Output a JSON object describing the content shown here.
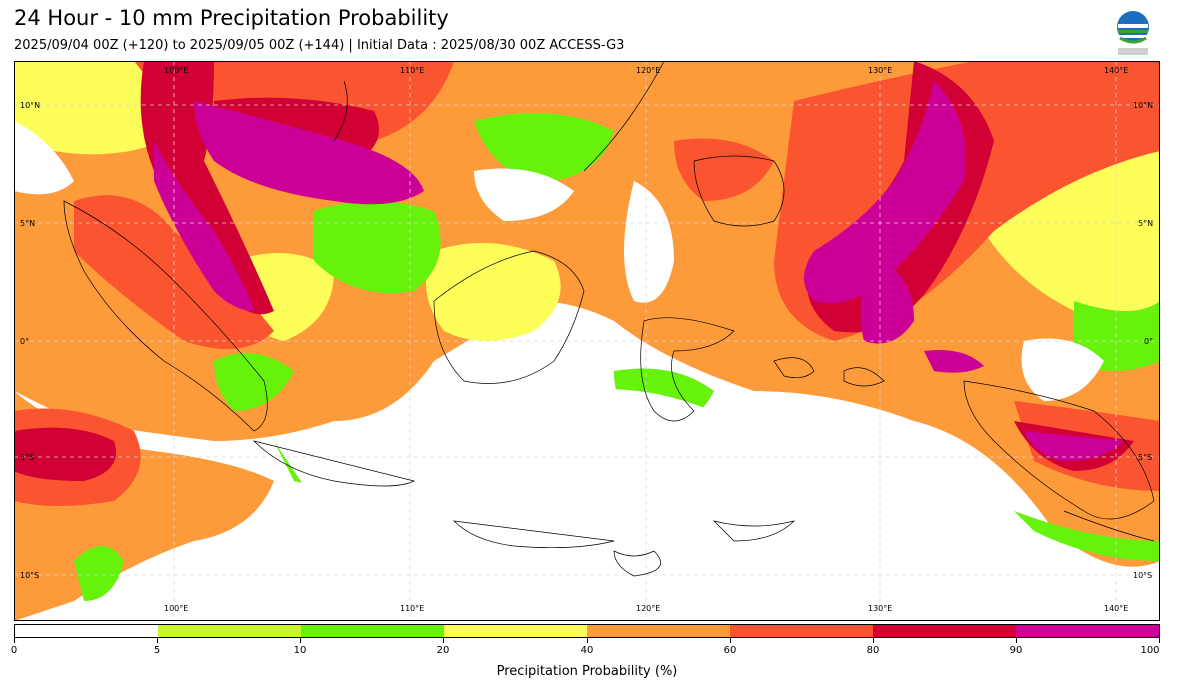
{
  "header": {
    "title": "24 Hour - 10 mm Precipitation Probability",
    "subtitle": "2025/09/04 00Z (+120) to 2025/09/05 00Z (+144) | Initial Data : 2025/08/30 00Z ACCESS-G3"
  },
  "logo": {
    "text": "BMKG"
  },
  "map": {
    "lon_labels_top": [
      "100°E",
      "110°E",
      "120°E",
      "130°E",
      "140°E"
    ],
    "lon_labels_bottom": [
      "100°E",
      "110°E",
      "120°E",
      "130°E",
      "140°E"
    ],
    "lat_labels_left": [
      "10°N",
      "5°N",
      "0°",
      "5°S",
      "10°S"
    ],
    "lat_labels_right": [
      "10°N",
      "5°N",
      "0°",
      "5°S",
      "10°S"
    ]
  },
  "colorbar": {
    "title": "Precipitation Probability (%)",
    "ticks": [
      "0",
      "5",
      "10",
      "20",
      "40",
      "60",
      "80",
      "90",
      "100"
    ],
    "colors": [
      "#ffffff",
      "#c5f533",
      "#66f20a",
      "#fefe5a",
      "#fd9a3a",
      "#fb5430",
      "#d10035",
      "#cc0096"
    ]
  }
}
